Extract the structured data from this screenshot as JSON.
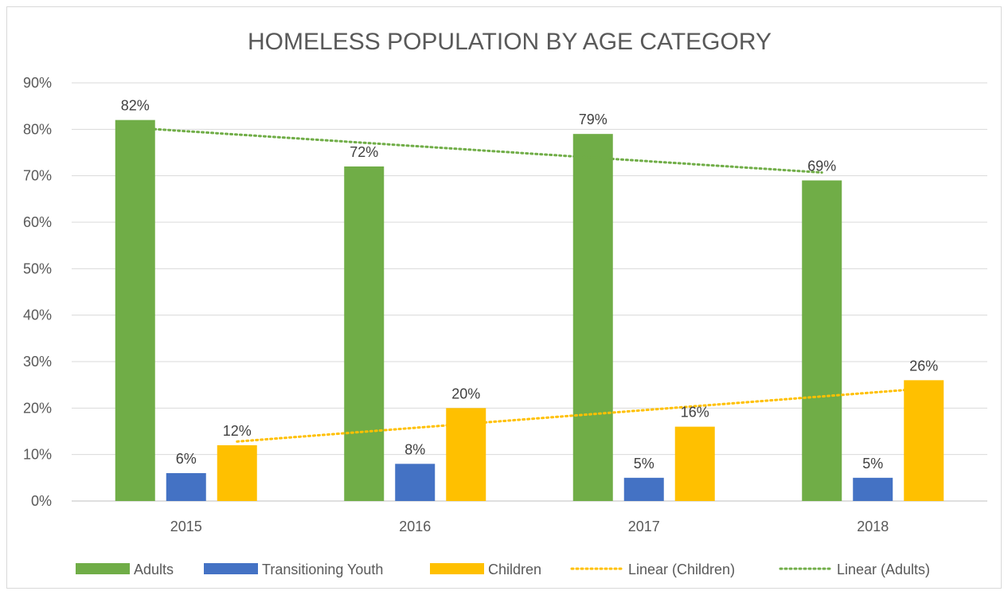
{
  "chart_data": {
    "type": "bar",
    "title": "HOMELESS POPULATION BY AGE CATEGORY",
    "categories": [
      "2015",
      "2016",
      "2017",
      "2018"
    ],
    "series": [
      {
        "name": "Adults",
        "values": [
          82,
          72,
          79,
          69
        ],
        "color": "#70ad47"
      },
      {
        "name": "Transitioning Youth",
        "values": [
          6,
          8,
          5,
          5
        ],
        "color": "#4472c4"
      },
      {
        "name": "Children",
        "values": [
          12,
          20,
          16,
          26
        ],
        "color": "#ffc000"
      }
    ],
    "trendlines": [
      {
        "name": "Linear (Children)",
        "series": "Children",
        "type": "linear",
        "color": "#ffc000",
        "style": "dotted"
      },
      {
        "name": "Linear (Adults)",
        "series": "Adults",
        "type": "linear",
        "color": "#70ad47",
        "style": "dotted"
      }
    ],
    "data_labels": {
      "Adults": [
        "82%",
        "72%",
        "79%",
        "69%"
      ],
      "Transitioning Youth": [
        "6%",
        "8%",
        "5%",
        "5%"
      ],
      "Children": [
        "12%",
        "20%",
        "16%",
        "26%"
      ]
    },
    "y_ticks": [
      "0%",
      "10%",
      "20%",
      "30%",
      "40%",
      "50%",
      "60%",
      "70%",
      "80%",
      "90%"
    ],
    "ylim": [
      0,
      90
    ],
    "y_format": "percent",
    "grid": true,
    "legend_position": "bottom",
    "legend": [
      "Adults",
      "Transitioning Youth",
      "Children",
      "Linear (Children)",
      "Linear (Adults)"
    ]
  }
}
